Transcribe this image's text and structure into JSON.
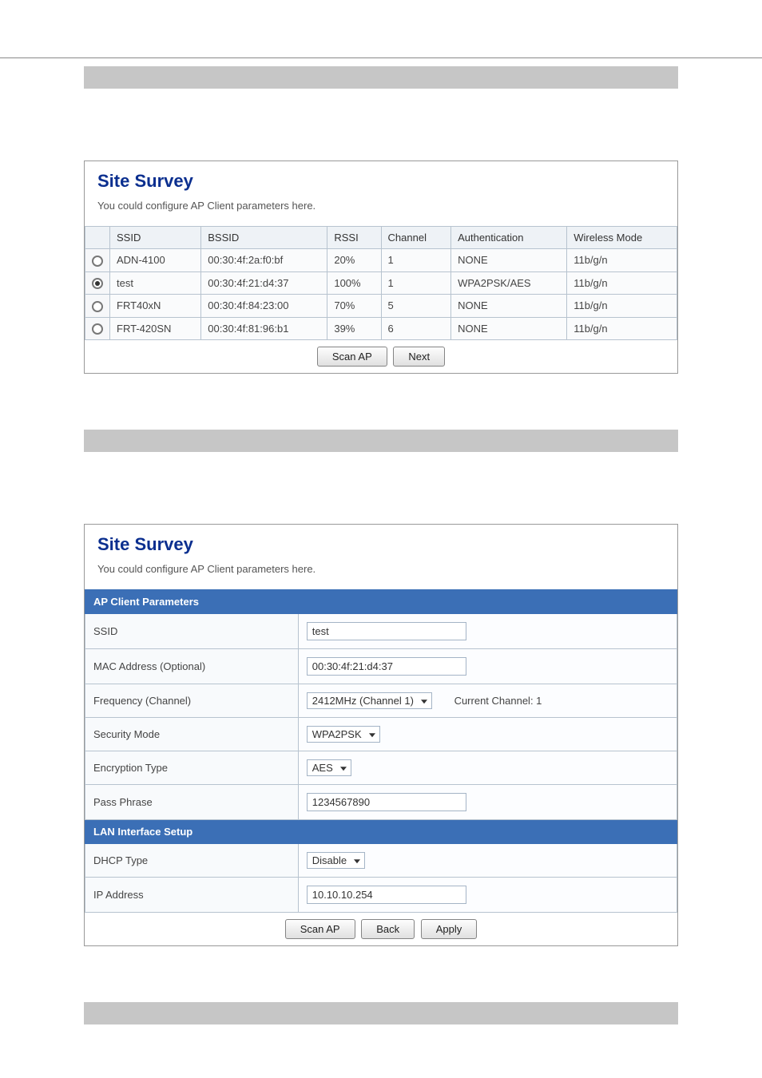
{
  "colors": {
    "title": "#0b2f8f",
    "section_bg": "#3b6fb6",
    "border": "#b7c3cf",
    "gray_bar": "#c6c6c6"
  },
  "survey_panel": {
    "title": "Site Survey",
    "subtitle": "You could configure AP Client parameters here.",
    "columns": [
      "SSID",
      "BSSID",
      "RSSI",
      "Channel",
      "Authentication",
      "Wireless Mode"
    ],
    "rows": [
      {
        "selected": false,
        "ssid": "ADN-4100",
        "bssid": "00:30:4f:2a:f0:bf",
        "rssi": "20%",
        "channel": "1",
        "auth": "NONE",
        "mode": "11b/g/n"
      },
      {
        "selected": true,
        "ssid": "test",
        "bssid": "00:30:4f:21:d4:37",
        "rssi": "100%",
        "channel": "1",
        "auth": "WPA2PSK/AES",
        "mode": "11b/g/n"
      },
      {
        "selected": false,
        "ssid": "FRT40xN",
        "bssid": "00:30:4f:84:23:00",
        "rssi": "70%",
        "channel": "5",
        "auth": "NONE",
        "mode": "11b/g/n"
      },
      {
        "selected": false,
        "ssid": "FRT-420SN",
        "bssid": "00:30:4f:81:96:b1",
        "rssi": "39%",
        "channel": "6",
        "auth": "NONE",
        "mode": "11b/g/n"
      }
    ],
    "buttons": {
      "scan": "Scan AP",
      "next": "Next"
    }
  },
  "params_panel": {
    "title": "Site Survey",
    "subtitle": "You could configure AP Client parameters here.",
    "ap_section": "AP Client Parameters",
    "lan_section": "LAN Interface Setup",
    "labels": {
      "ssid": "SSID",
      "mac": "MAC Address (Optional)",
      "freq": "Frequency (Channel)",
      "sec": "Security Mode",
      "enc": "Encryption Type",
      "pass": "Pass Phrase",
      "dhcp": "DHCP Type",
      "ip": "IP Address"
    },
    "values": {
      "ssid": "test",
      "mac": "00:30:4f:21:d4:37",
      "freq": "2412MHz (Channel 1)",
      "current_channel_label": "Current Channel: 1",
      "sec": "WPA2PSK",
      "enc": "AES",
      "pass": "1234567890",
      "dhcp": "Disable",
      "ip": "10.10.10.254"
    },
    "buttons": {
      "scan": "Scan AP",
      "back": "Back",
      "apply": "Apply"
    }
  }
}
